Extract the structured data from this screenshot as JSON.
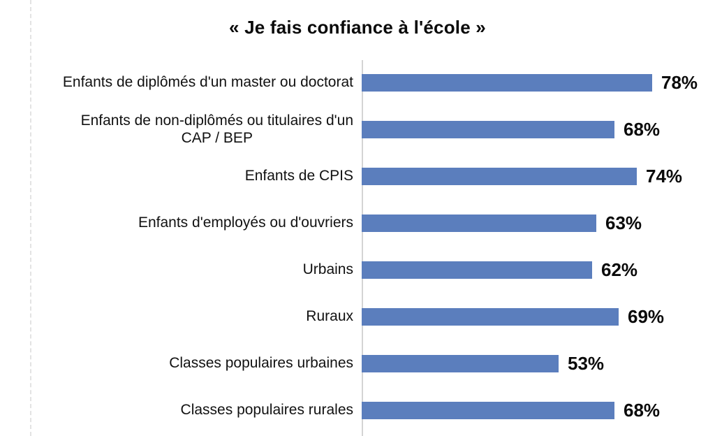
{
  "title": "« Je fais confiance à l'école »",
  "colors": {
    "bar": "#5b7ebd",
    "axis_line": "#d4d4d4",
    "dashed_guide": "#e3e3e3",
    "text": "#111111"
  },
  "chart_data": {
    "type": "bar",
    "orientation": "horizontal",
    "title": "« Je fais confiance à l'école »",
    "categories": [
      "Enfants de diplômés d'un master ou doctorat",
      "Enfants de non-diplômés ou titulaires d'un\nCAP / BEP",
      "Enfants de CPIS",
      "Enfants d'employés ou d'ouvriers",
      "Urbains",
      "Ruraux",
      "Classes populaires urbaines",
      "Classes populaires rurales"
    ],
    "values": [
      78,
      68,
      74,
      63,
      62,
      69,
      53,
      68
    ],
    "display_values": [
      "78%",
      "68%",
      "74%",
      "63%",
      "62%",
      "69%",
      "53%",
      "68%"
    ],
    "unit": "%",
    "xlabel": "",
    "ylabel": "",
    "xlim": [
      0,
      95
    ],
    "gridlines": false,
    "legend": "none",
    "value_label_position": "outside-end"
  }
}
